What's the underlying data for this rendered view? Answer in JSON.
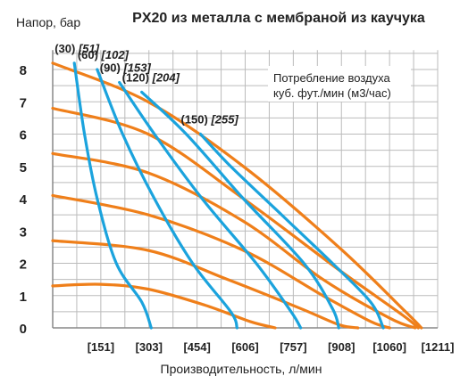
{
  "chart_data": {
    "type": "line",
    "title": "PX20 из металла с мембраной из каучука",
    "ylabel": "Напор, бар",
    "xlabel": "Производительность, л/мин",
    "ylim": [
      0,
      8.6
    ],
    "yticks": [
      "0",
      "1",
      "2",
      "3",
      "4",
      "5",
      "6",
      "7",
      "8"
    ],
    "xticks": [
      "[151]",
      "[303]",
      "[454]",
      "[606]",
      "[757]",
      "[908]",
      "[1060]",
      "[1211]"
    ],
    "xlim": [
      0,
      1211
    ],
    "grid": true,
    "legend": {
      "line1": "Потребление воздуха",
      "line2": "куб. фут./мин (м3/час)",
      "placement": "top-right"
    },
    "colors": {
      "flow_curves": "#1ba3dd",
      "air_curves": "#ef7f1a",
      "grid": "#bbbbbb"
    },
    "air_labels": [
      {
        "plain": "(30)",
        "italic": "[51]"
      },
      {
        "plain": "(60)",
        "italic": "[102]"
      },
      {
        "plain": "(90)",
        "italic": "[153]"
      },
      {
        "plain": "(120)",
        "italic": "[204]"
      },
      {
        "plain": "(150)",
        "italic": "[255]"
      }
    ],
    "series": [
      {
        "color": "blue",
        "points": [
          [
            68,
            8.2
          ],
          [
            100,
            6
          ],
          [
            140,
            4
          ],
          [
            200,
            2
          ],
          [
            280,
            0.8
          ],
          [
            310,
            0
          ]
        ]
      },
      {
        "color": "blue",
        "points": [
          [
            140,
            8.0
          ],
          [
            220,
            6
          ],
          [
            320,
            4
          ],
          [
            440,
            2
          ],
          [
            560,
            0.5
          ],
          [
            580,
            0
          ]
        ]
      },
      {
        "color": "blue",
        "points": [
          [
            210,
            7.6
          ],
          [
            320,
            6
          ],
          [
            470,
            4
          ],
          [
            640,
            2
          ],
          [
            750,
            0.5
          ],
          [
            780,
            0
          ]
        ]
      },
      {
        "color": "blue",
        "points": [
          [
            280,
            7.3
          ],
          [
            420,
            6
          ],
          [
            600,
            4
          ],
          [
            790,
            2
          ],
          [
            880,
            0.6
          ],
          [
            900,
            0
          ]
        ]
      },
      {
        "color": "blue",
        "points": [
          [
            465,
            6.0
          ],
          [
            560,
            5
          ],
          [
            720,
            3.5
          ],
          [
            880,
            2
          ],
          [
            1000,
            0.8
          ],
          [
            1040,
            0
          ]
        ]
      },
      {
        "color": "orange",
        "points": [
          [
            0,
            8.2
          ],
          [
            300,
            7
          ],
          [
            600,
            5
          ],
          [
            900,
            2.5
          ],
          [
            1110,
            0.5
          ],
          [
            1160,
            0
          ]
        ]
      },
      {
        "color": "orange",
        "points": [
          [
            0,
            6.8
          ],
          [
            300,
            6
          ],
          [
            600,
            4
          ],
          [
            900,
            1.8
          ],
          [
            1100,
            0.4
          ],
          [
            1150,
            0
          ]
        ]
      },
      {
        "color": "orange",
        "points": [
          [
            0,
            5.4
          ],
          [
            300,
            4.8
          ],
          [
            600,
            3.3
          ],
          [
            850,
            1.5
          ],
          [
            1060,
            0.3
          ],
          [
            1140,
            0
          ]
        ]
      },
      {
        "color": "orange",
        "points": [
          [
            0,
            4.1
          ],
          [
            300,
            3.5
          ],
          [
            600,
            2.4
          ],
          [
            850,
            1.0
          ],
          [
            1000,
            0.2
          ],
          [
            1060,
            0
          ]
        ]
      },
      {
        "color": "orange",
        "points": [
          [
            0,
            2.7
          ],
          [
            300,
            2.4
          ],
          [
            550,
            1.5
          ],
          [
            780,
            0.6
          ],
          [
            900,
            0.1
          ],
          [
            960,
            0
          ]
        ]
      },
      {
        "color": "orange",
        "points": [
          [
            0,
            1.3
          ],
          [
            150,
            1.35
          ],
          [
            300,
            1.2
          ],
          [
            480,
            0.7
          ],
          [
            620,
            0.2
          ],
          [
            700,
            0
          ]
        ]
      }
    ]
  }
}
